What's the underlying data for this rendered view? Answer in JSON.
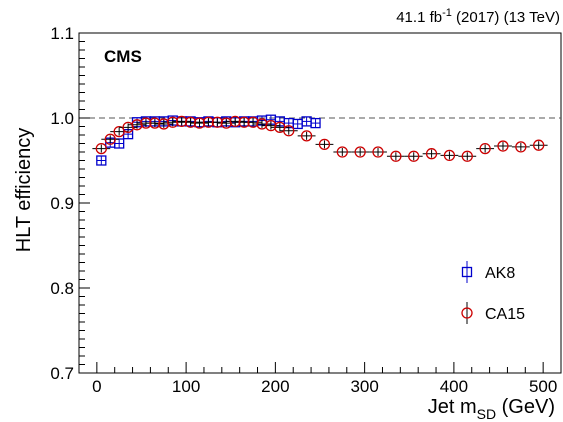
{
  "chart_data": {
    "type": "scatter",
    "experiment_label": "CMS",
    "lumi": {
      "main": "41.1 fb",
      "superscript": "-1",
      "rest": " (2017) (13 TeV)"
    },
    "xlabel": {
      "main": "Jet m",
      "subscript": "SD",
      "unit": " (GeV)"
    },
    "ylabel": "HLT efficiency",
    "xlim": [
      -20,
      520
    ],
    "ylim": [
      0.7,
      1.1
    ],
    "x_ticks": [
      0,
      100,
      200,
      300,
      400,
      500
    ],
    "y_ticks": [
      0.7,
      0.8,
      0.9,
      1.0,
      1.1
    ],
    "y_tick_labels": [
      "0.7",
      "0.8",
      "0.9",
      "1.0",
      "1.1"
    ],
    "reference_line": 1.0,
    "legend_position": "bottom-right",
    "series": [
      {
        "name": "AK8",
        "marker": "open-square",
        "color": "#0000cc",
        "bin_halfwidth": 5,
        "x": [
          5,
          15,
          25,
          35,
          45,
          55,
          65,
          75,
          85,
          95,
          105,
          115,
          125,
          135,
          145,
          155,
          165,
          175,
          185,
          195,
          205,
          215,
          225,
          235,
          245
        ],
        "y": [
          0.95,
          0.971,
          0.97,
          0.981,
          0.995,
          0.996,
          0.996,
          0.996,
          0.997,
          0.996,
          0.996,
          0.995,
          0.996,
          0.995,
          0.996,
          0.995,
          0.996,
          0.996,
          0.997,
          0.998,
          0.996,
          0.994,
          0.993,
          0.996,
          0.994
        ]
      },
      {
        "name": "CA15",
        "marker": "open-circle",
        "color": "#cc0000",
        "bin_halfwidth": 10,
        "x": [
          5,
          15,
          25,
          35,
          45,
          55,
          65,
          75,
          85,
          95,
          105,
          115,
          125,
          135,
          145,
          155,
          165,
          175,
          185,
          195,
          205,
          215,
          235,
          255,
          275,
          295,
          315,
          335,
          355,
          375,
          395,
          415,
          435,
          455,
          475,
          495
        ],
        "y": [
          0.964,
          0.975,
          0.984,
          0.989,
          0.992,
          0.994,
          0.994,
          0.993,
          0.995,
          0.996,
          0.995,
          0.994,
          0.995,
          0.995,
          0.994,
          0.996,
          0.995,
          0.995,
          0.993,
          0.991,
          0.989,
          0.985,
          0.979,
          0.969,
          0.96,
          0.96,
          0.96,
          0.955,
          0.955,
          0.958,
          0.956,
          0.955,
          0.964,
          0.967,
          0.966,
          0.968
        ]
      }
    ]
  }
}
